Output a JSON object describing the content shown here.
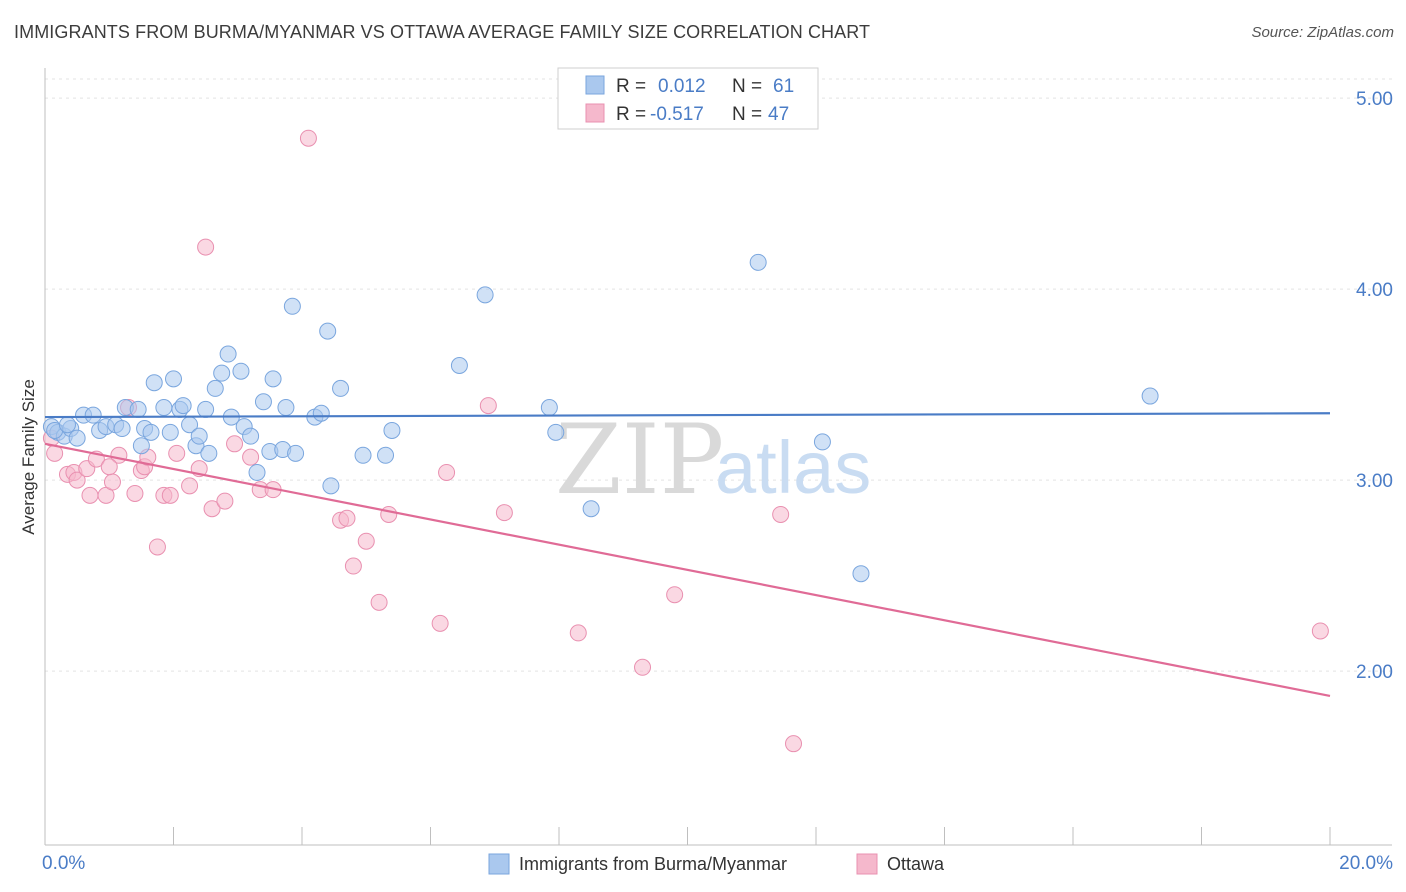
{
  "title": "IMMIGRANTS FROM BURMA/MYANMAR VS OTTAWA AVERAGE FAMILY SIZE CORRELATION CHART",
  "source": "Source: ZipAtlas.com",
  "watermark": {
    "zip": "ZIP",
    "atlas": "atlas"
  },
  "colors": {
    "blue": "#4a7cc6",
    "blue_fill": "#aac8ee",
    "pink": "#e06b96",
    "pink_fill": "#f5b8cc"
  },
  "stats_legend": [
    {
      "r_label": "R =",
      "r_value": "0.012",
      "n_label": "N =",
      "n_value": "61"
    },
    {
      "r_label": "R =",
      "r_value": "-0.517",
      "n_label": "N =",
      "n_value": "47"
    }
  ],
  "chart_data": {
    "type": "scatter",
    "xlabel": "",
    "ylabel": "Average Family Size",
    "xlim": [
      0,
      20
    ],
    "ylim": [
      1.1,
      5.1
    ],
    "x_tick_labels": [
      "0.0%",
      "20.0%"
    ],
    "y_ticks": [
      2.0,
      3.0,
      4.0,
      5.0
    ],
    "y_tick_labels": [
      "2.00",
      "3.00",
      "4.00",
      "5.00"
    ],
    "grid": true,
    "legend_position": "bottom",
    "series": [
      {
        "name": "Immigrants from Burma/Myanmar",
        "color": "#4a7cc6",
        "trend": [
          [
            0,
            3.33
          ],
          [
            20,
            3.35
          ]
        ],
        "points": [
          [
            0.1,
            3.28
          ],
          [
            0.2,
            3.25
          ],
          [
            0.3,
            3.23
          ],
          [
            0.4,
            3.27
          ],
          [
            0.5,
            3.22
          ],
          [
            0.6,
            3.34
          ],
          [
            0.75,
            3.34
          ],
          [
            0.85,
            3.26
          ],
          [
            0.95,
            3.28
          ],
          [
            1.1,
            3.29
          ],
          [
            1.2,
            3.27
          ],
          [
            1.25,
            3.38
          ],
          [
            1.45,
            3.37
          ],
          [
            1.5,
            3.18
          ],
          [
            1.55,
            3.27
          ],
          [
            1.65,
            3.25
          ],
          [
            1.7,
            3.51
          ],
          [
            1.85,
            3.38
          ],
          [
            1.95,
            3.25
          ],
          [
            2.0,
            3.53
          ],
          [
            2.1,
            3.37
          ],
          [
            2.15,
            3.39
          ],
          [
            2.25,
            3.29
          ],
          [
            2.35,
            3.18
          ],
          [
            2.4,
            3.23
          ],
          [
            2.5,
            3.37
          ],
          [
            2.55,
            3.14
          ],
          [
            2.65,
            3.48
          ],
          [
            2.75,
            3.56
          ],
          [
            2.85,
            3.66
          ],
          [
            3.05,
            3.57
          ],
          [
            3.1,
            3.28
          ],
          [
            3.2,
            3.23
          ],
          [
            3.3,
            3.04
          ],
          [
            3.4,
            3.41
          ],
          [
            3.5,
            3.15
          ],
          [
            3.55,
            3.53
          ],
          [
            3.7,
            3.16
          ],
          [
            3.75,
            3.38
          ],
          [
            3.85,
            3.91
          ],
          [
            3.9,
            3.14
          ],
          [
            4.2,
            3.33
          ],
          [
            4.3,
            3.35
          ],
          [
            4.4,
            3.78
          ],
          [
            4.45,
            2.97
          ],
          [
            4.6,
            3.48
          ],
          [
            4.95,
            3.13
          ],
          [
            5.3,
            3.13
          ],
          [
            5.4,
            3.26
          ],
          [
            6.45,
            3.6
          ],
          [
            6.85,
            3.97
          ],
          [
            7.85,
            3.38
          ],
          [
            7.95,
            3.25
          ],
          [
            8.5,
            2.85
          ],
          [
            11.1,
            4.14
          ],
          [
            12.1,
            3.2
          ],
          [
            12.7,
            2.51
          ],
          [
            17.2,
            3.44
          ],
          [
            0.15,
            3.26
          ],
          [
            0.35,
            3.29
          ],
          [
            2.9,
            3.33
          ]
        ]
      },
      {
        "name": "Ottawa",
        "color": "#e06b96",
        "trend": [
          [
            0,
            3.19
          ],
          [
            20,
            1.87
          ]
        ],
        "points": [
          [
            0.1,
            3.22
          ],
          [
            0.15,
            3.14
          ],
          [
            0.35,
            3.03
          ],
          [
            0.45,
            3.04
          ],
          [
            0.5,
            3.0
          ],
          [
            0.65,
            3.06
          ],
          [
            0.7,
            2.92
          ],
          [
            0.8,
            3.11
          ],
          [
            0.95,
            2.92
          ],
          [
            1.05,
            2.99
          ],
          [
            1.15,
            3.13
          ],
          [
            1.3,
            3.38
          ],
          [
            1.4,
            2.93
          ],
          [
            1.5,
            3.05
          ],
          [
            1.55,
            3.07
          ],
          [
            1.6,
            3.12
          ],
          [
            1.75,
            2.65
          ],
          [
            1.85,
            2.92
          ],
          [
            1.95,
            2.92
          ],
          [
            2.05,
            3.14
          ],
          [
            2.25,
            2.97
          ],
          [
            2.4,
            3.06
          ],
          [
            2.5,
            4.22
          ],
          [
            2.6,
            2.85
          ],
          [
            2.8,
            2.89
          ],
          [
            2.95,
            3.19
          ],
          [
            3.2,
            3.12
          ],
          [
            3.35,
            2.95
          ],
          [
            3.55,
            2.95
          ],
          [
            4.1,
            4.79
          ],
          [
            4.6,
            2.79
          ],
          [
            4.7,
            2.8
          ],
          [
            4.8,
            2.55
          ],
          [
            5.0,
            2.68
          ],
          [
            5.2,
            2.36
          ],
          [
            5.35,
            2.82
          ],
          [
            6.15,
            2.25
          ],
          [
            6.25,
            3.04
          ],
          [
            6.9,
            3.39
          ],
          [
            7.15,
            2.83
          ],
          [
            8.3,
            2.2
          ],
          [
            9.3,
            2.02
          ],
          [
            9.8,
            2.4
          ],
          [
            11.45,
            2.82
          ],
          [
            11.65,
            1.62
          ],
          [
            19.85,
            2.21
          ],
          [
            1.0,
            3.07
          ]
        ]
      }
    ]
  },
  "bottom_legend": [
    {
      "label": "Immigrants from Burma/Myanmar"
    },
    {
      "label": "Ottawa"
    }
  ]
}
